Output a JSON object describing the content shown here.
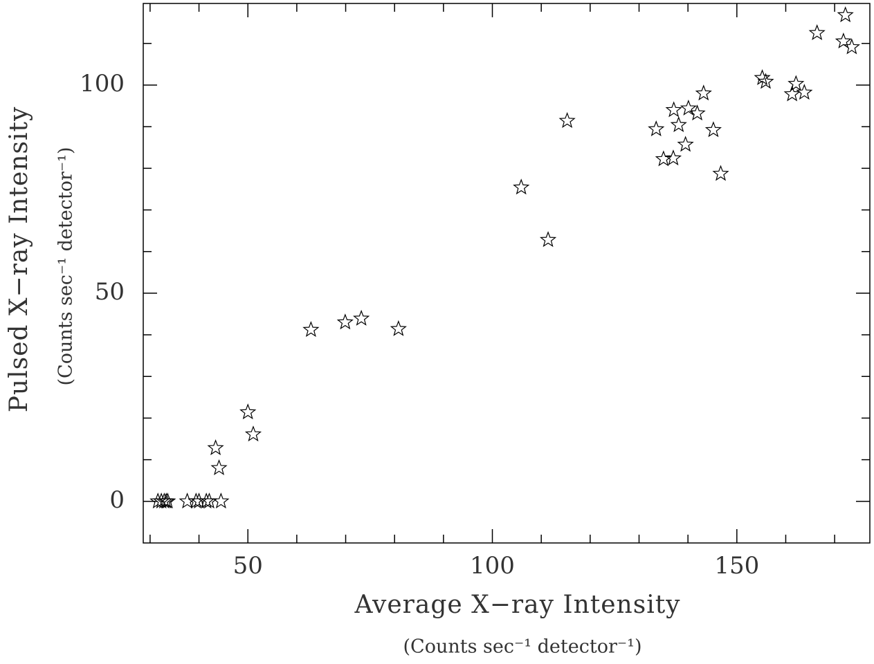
{
  "chart_data": {
    "type": "scatter",
    "x_label": "Average X−ray Intensity",
    "x_sublabel": "(Counts sec⁻¹ detector⁻¹)",
    "y_label": "Pulsed X−ray Intensity",
    "y_sublabel": "(Counts sec⁻¹ detector⁻¹)",
    "xlim": [
      28.6,
      177.2
    ],
    "ylim": [
      -10,
      119.6
    ],
    "xticks": [
      50,
      100,
      150
    ],
    "yticks": [
      0,
      50,
      100
    ],
    "x_minor_ticks": [
      30,
      40,
      60,
      70,
      80,
      90,
      110,
      120,
      130,
      140,
      160,
      170
    ],
    "y_minor_ticks": [
      10,
      20,
      30,
      40,
      60,
      70,
      80,
      90,
      110
    ],
    "marker": "star",
    "color": "#000000",
    "x": [
      31.6,
      32.3,
      32.9,
      33.3,
      33.6,
      37.6,
      39.4,
      40.0,
      41.5,
      42.1,
      44.5,
      43.4,
      44.1,
      50.0,
      51.1,
      62.9,
      69.9,
      73.2,
      80.8,
      105.9,
      111.4,
      115.3,
      133.5,
      135.0,
      137.0,
      137.1,
      138.1,
      139.5,
      140.1,
      141.9,
      143.2,
      145.2,
      146.7,
      155.2,
      155.9,
      161.3,
      162.1,
      163.8,
      166.4,
      171.8,
      172.2,
      173.5
    ],
    "values": [
      0,
      0,
      0,
      0,
      0,
      0,
      0,
      0,
      0,
      0,
      0,
      12.8,
      8.0,
      21.4,
      16.1,
      41.2,
      43.0,
      43.9,
      41.4,
      75.4,
      62.8,
      91.4,
      89.4,
      82.2,
      82.4,
      94.0,
      90.4,
      85.7,
      94.4,
      93.2,
      98.0,
      89.2,
      78.7,
      101.7,
      100.8,
      97.8,
      100.3,
      98.2,
      112.5,
      110.5,
      116.8,
      109.1
    ]
  }
}
